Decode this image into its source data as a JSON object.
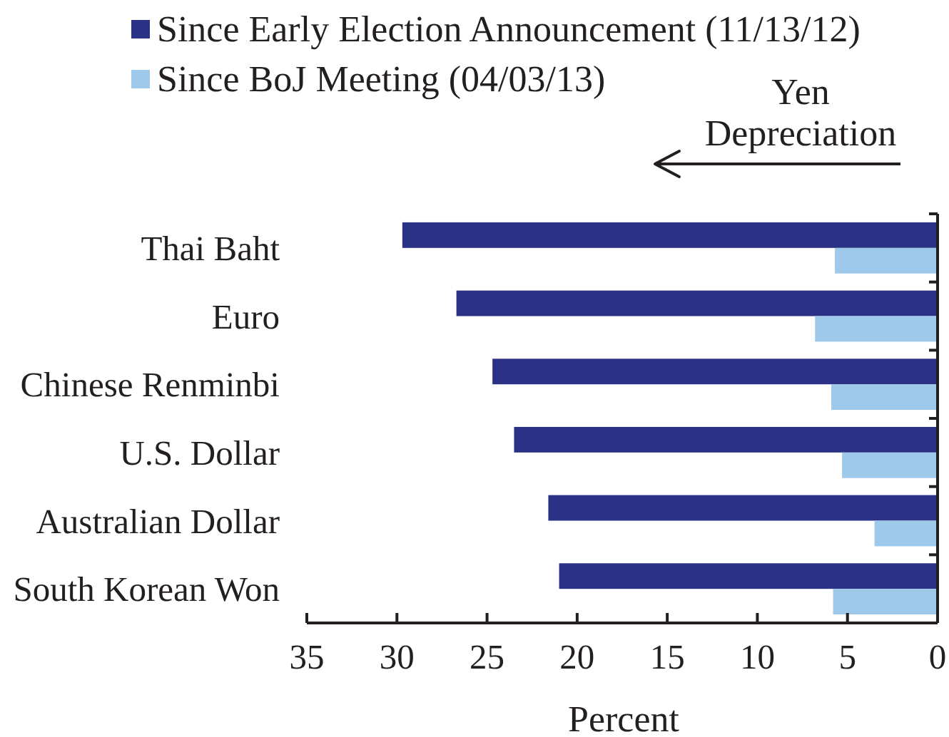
{
  "chart_data": {
    "type": "bar",
    "orientation": "horizontal",
    "categories": [
      "Thai Baht",
      "Euro",
      "Chinese Renminbi",
      "U.S. Dollar",
      "Australian Dollar",
      "South Korean Won"
    ],
    "series": [
      {
        "name": "Since Early Election Announcement (11/13/12)",
        "color": "#2b3185",
        "values": [
          29.7,
          26.7,
          24.7,
          23.5,
          21.6,
          21.0
        ]
      },
      {
        "name": "Since BoJ Meeting (04/03/13)",
        "color": "#9fc9ea",
        "values": [
          5.7,
          6.8,
          5.9,
          5.3,
          3.5,
          5.8
        ]
      }
    ],
    "xlim": [
      35,
      0
    ],
    "xticks": [
      35,
      30,
      25,
      20,
      15,
      10,
      5,
      0
    ],
    "xlabel": "Percent",
    "legend": "top",
    "annotations": [
      "Yen\nDepreciation"
    ]
  }
}
